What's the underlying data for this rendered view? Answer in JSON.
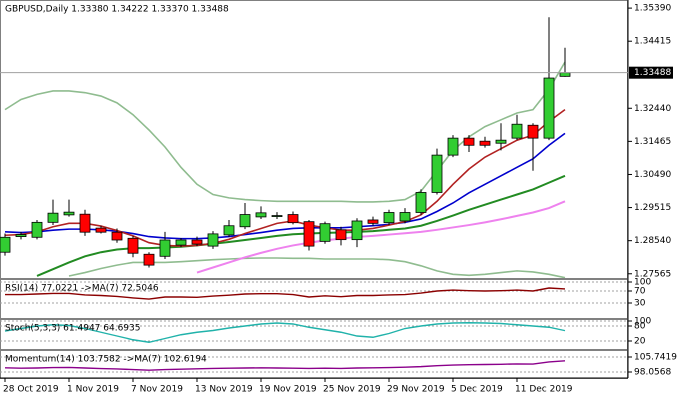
{
  "chart_data": [
    {
      "type": "candlestick",
      "title": "GBPUSD,Daily  1.33380 1.34222 1.33370 1.33488",
      "categories": [
        "28 Oct 2019",
        null,
        null,
        null,
        "1 Nov 2019",
        null,
        null,
        null,
        "7 Nov 2019",
        null,
        null,
        null,
        "13 Nov 2019",
        null,
        null,
        null,
        "19 Nov 2019",
        null,
        null,
        null,
        "25 Nov 2019",
        null,
        null,
        null,
        "29 Nov 2019",
        null,
        null,
        null,
        "5 Dec 2019",
        null,
        null,
        null,
        "11 Dec 2019",
        null,
        null,
        null
      ],
      "open": [
        1.282,
        1.2866,
        1.2864,
        1.2908,
        1.293,
        1.2932,
        1.2891,
        1.2879,
        1.2861,
        1.2814,
        1.2808,
        1.2841,
        1.2856,
        1.2838,
        1.2871,
        1.2895,
        1.2924,
        1.2925,
        1.2931,
        1.291,
        1.2852,
        1.2886,
        1.2857,
        1.2915,
        1.2907,
        1.2912,
        1.2937,
        1.2996,
        1.3106,
        1.3156,
        1.3147,
        1.3141,
        1.3156,
        1.3194,
        1.3156,
        1.3338
      ],
      "high": [
        1.2875,
        1.288,
        1.2915,
        1.2975,
        1.2975,
        1.2945,
        1.2898,
        1.289,
        1.2868,
        1.282,
        1.288,
        1.2862,
        1.2866,
        1.2882,
        1.2915,
        1.2965,
        1.2955,
        1.2938,
        1.294,
        1.2915,
        1.291,
        1.2895,
        1.292,
        1.2925,
        1.2945,
        1.295,
        1.3005,
        1.3125,
        1.3165,
        1.3165,
        1.316,
        1.32,
        1.3225,
        1.32,
        1.3512,
        1.34222
      ],
      "low": [
        1.281,
        1.2858,
        1.2858,
        1.29,
        1.2925,
        1.2868,
        1.2875,
        1.2848,
        1.2805,
        1.2775,
        1.28,
        1.2835,
        1.2838,
        1.283,
        1.2865,
        1.2888,
        1.2918,
        1.2918,
        1.2902,
        1.2825,
        1.2845,
        1.284,
        1.2835,
        1.2898,
        1.29,
        1.2905,
        1.293,
        1.299,
        1.31,
        1.3115,
        1.3128,
        1.312,
        1.315,
        1.306,
        1.315,
        1.3337
      ],
      "close": [
        1.2864,
        1.2872,
        1.2908,
        1.2935,
        1.2938,
        1.2879,
        1.2879,
        1.2856,
        1.2817,
        1.2782,
        1.2856,
        1.2856,
        1.2844,
        1.2874,
        1.2898,
        1.2931,
        1.2936,
        1.2928,
        1.2907,
        1.2838,
        1.2904,
        1.2857,
        1.2912,
        1.2905,
        1.2937,
        1.2937,
        1.2996,
        1.3106,
        1.3156,
        1.3135,
        1.3135,
        1.315,
        1.3197,
        1.3156,
        1.3333,
        1.33488
      ],
      "up_color": "#32cd32",
      "down_color": "#ff0000",
      "series": [
        {
          "color": "#8fbc8f",
          "values": [
            1.324,
            1.327,
            1.3285,
            1.3295,
            1.3295,
            1.329,
            1.328,
            1.326,
            1.3225,
            1.318,
            1.313,
            1.307,
            1.302,
            1.299,
            1.298,
            1.2975,
            1.2972,
            1.297,
            1.297,
            1.297,
            1.297,
            1.297,
            1.2968,
            1.2968,
            1.297,
            1.2975,
            1.3,
            1.306,
            1.312,
            1.316,
            1.319,
            1.321,
            1.323,
            1.324,
            1.33,
            1.338
          ]
        },
        {
          "color": "#8fbc8f",
          "values": [
            null,
            null,
            null,
            null,
            1.275,
            1.276,
            1.2772,
            1.2782,
            1.279,
            1.279,
            1.279,
            1.2792,
            1.2795,
            1.2798,
            1.28,
            1.2802,
            1.2803,
            1.2803,
            1.2802,
            1.2802,
            1.28,
            1.28,
            1.28,
            1.28,
            1.2798,
            1.2792,
            1.278,
            1.2765,
            1.2755,
            1.2752,
            1.2755,
            1.276,
            1.2765,
            1.2762,
            1.2755,
            1.2745
          ]
        },
        {
          "color": "#ee82ee",
          "values": [
            null,
            null,
            null,
            null,
            null,
            null,
            null,
            null,
            null,
            null,
            null,
            null,
            1.276,
            1.2775,
            1.279,
            1.2805,
            1.2818,
            1.283,
            1.284,
            1.2848,
            1.2855,
            1.286,
            1.2865,
            1.2868,
            1.2872,
            1.2876,
            1.288,
            1.2886,
            1.2893,
            1.29,
            1.2908,
            1.2917,
            1.2927,
            1.2937,
            1.295,
            1.297
          ]
        },
        {
          "color": "#228b22",
          "values": [
            null,
            null,
            1.275,
            1.277,
            1.279,
            1.2808,
            1.282,
            1.2828,
            1.2832,
            1.2832,
            1.2834,
            1.2836,
            1.284,
            1.2845,
            1.285,
            1.2856,
            1.2862,
            1.2868,
            1.2873,
            1.2875,
            1.2877,
            1.2878,
            1.288,
            1.2882,
            1.2886,
            1.289,
            1.2898,
            1.2912,
            1.2928,
            1.2945,
            1.296,
            1.2975,
            1.299,
            1.3005,
            1.3025,
            1.3045
          ]
        },
        {
          "color": "#0000cd",
          "values": [
            1.288,
            1.2878,
            1.288,
            1.2885,
            1.2888,
            1.2888,
            1.2886,
            1.2882,
            1.2875,
            1.2866,
            1.2862,
            1.286,
            1.286,
            1.2862,
            1.2866,
            1.2872,
            1.2878,
            1.2885,
            1.289,
            1.2892,
            1.2892,
            1.2892,
            1.2895,
            1.2898,
            1.2902,
            1.2908,
            1.2918,
            1.294,
            1.2965,
            1.2995,
            1.302,
            1.3045,
            1.307,
            1.3095,
            1.3135,
            1.317
          ]
        },
        {
          "color": "#b22222",
          "values": [
            1.287,
            1.2872,
            1.288,
            1.2895,
            1.2905,
            1.2905,
            1.2897,
            1.2884,
            1.2868,
            1.2848,
            1.284,
            1.2838,
            1.284,
            1.2846,
            1.2858,
            1.2875,
            1.289,
            1.2905,
            1.2912,
            1.29,
            1.2892,
            1.2885,
            1.2885,
            1.289,
            1.29,
            1.291,
            1.293,
            1.297,
            1.302,
            1.3065,
            1.31,
            1.3125,
            1.315,
            1.3165,
            1.3205,
            1.324
          ]
        }
      ],
      "current_price": {
        "value": 1.33488,
        "label": "1.33488"
      },
      "ylim": [
        1.2747,
        1.3557
      ],
      "yticks": [
        {
          "value": 1.3539,
          "label": "1.35390"
        },
        {
          "value": 1.34415,
          "label": "1.34415"
        },
        {
          "value": 1.3244,
          "label": "1.32440"
        },
        {
          "value": 1.31465,
          "label": "1.31465"
        },
        {
          "value": 1.3049,
          "label": "1.30490"
        },
        {
          "value": 1.29515,
          "label": "1.29515"
        },
        {
          "value": 1.2854,
          "label": "1.28540"
        },
        {
          "value": 1.27565,
          "label": "1.27565"
        }
      ]
    },
    {
      "type": "line",
      "title": "RSI(14) 77.0221  ->MA(7) 72.5046",
      "color": "#8b0000",
      "values": [
        58,
        58,
        60,
        62,
        62,
        57,
        55,
        52,
        47,
        43,
        50,
        50,
        49,
        53,
        56,
        60,
        61,
        61,
        58,
        50,
        54,
        51,
        55,
        55,
        57,
        58,
        63,
        70,
        73,
        71,
        70,
        71,
        73,
        70,
        80,
        77.0221
      ],
      "ylim": [
        0,
        100
      ],
      "yticks": [
        100,
        70,
        30
      ]
    },
    {
      "type": "line",
      "title": "Stoch(5,3,3) 61.4947 64.6935",
      "color": "#20b2aa",
      "values": [
        60,
        70,
        80,
        85,
        82,
        70,
        55,
        40,
        25,
        15,
        30,
        45,
        55,
        62,
        72,
        80,
        88,
        92,
        88,
        75,
        65,
        55,
        40,
        35,
        50,
        70,
        80,
        88,
        92,
        93,
        92,
        90,
        85,
        80,
        75,
        61.4947
      ],
      "ylim": [
        0,
        100
      ],
      "yticks": [
        100,
        80,
        20
      ]
    },
    {
      "type": "line",
      "title": "Momentum(14) 103.7582  ->MA(7) 102.6194",
      "color": "#8b008b",
      "values": [
        100.2,
        100.0,
        100.1,
        100.3,
        100.4,
        100.1,
        99.8,
        99.6,
        99.3,
        99.0,
        99.3,
        99.5,
        99.7,
        99.9,
        100.0,
        100.1,
        100.2,
        100.1,
        100.0,
        99.9,
        100.0,
        99.9,
        100.1,
        100.2,
        100.3,
        100.5,
        100.8,
        101.3,
        101.6,
        101.8,
        101.9,
        102.0,
        102.2,
        102.1,
        103.2,
        103.7582
      ],
      "ylim": [
        96.0,
        108.3
      ],
      "yticks": [
        105.7419,
        98.0568
      ]
    }
  ]
}
